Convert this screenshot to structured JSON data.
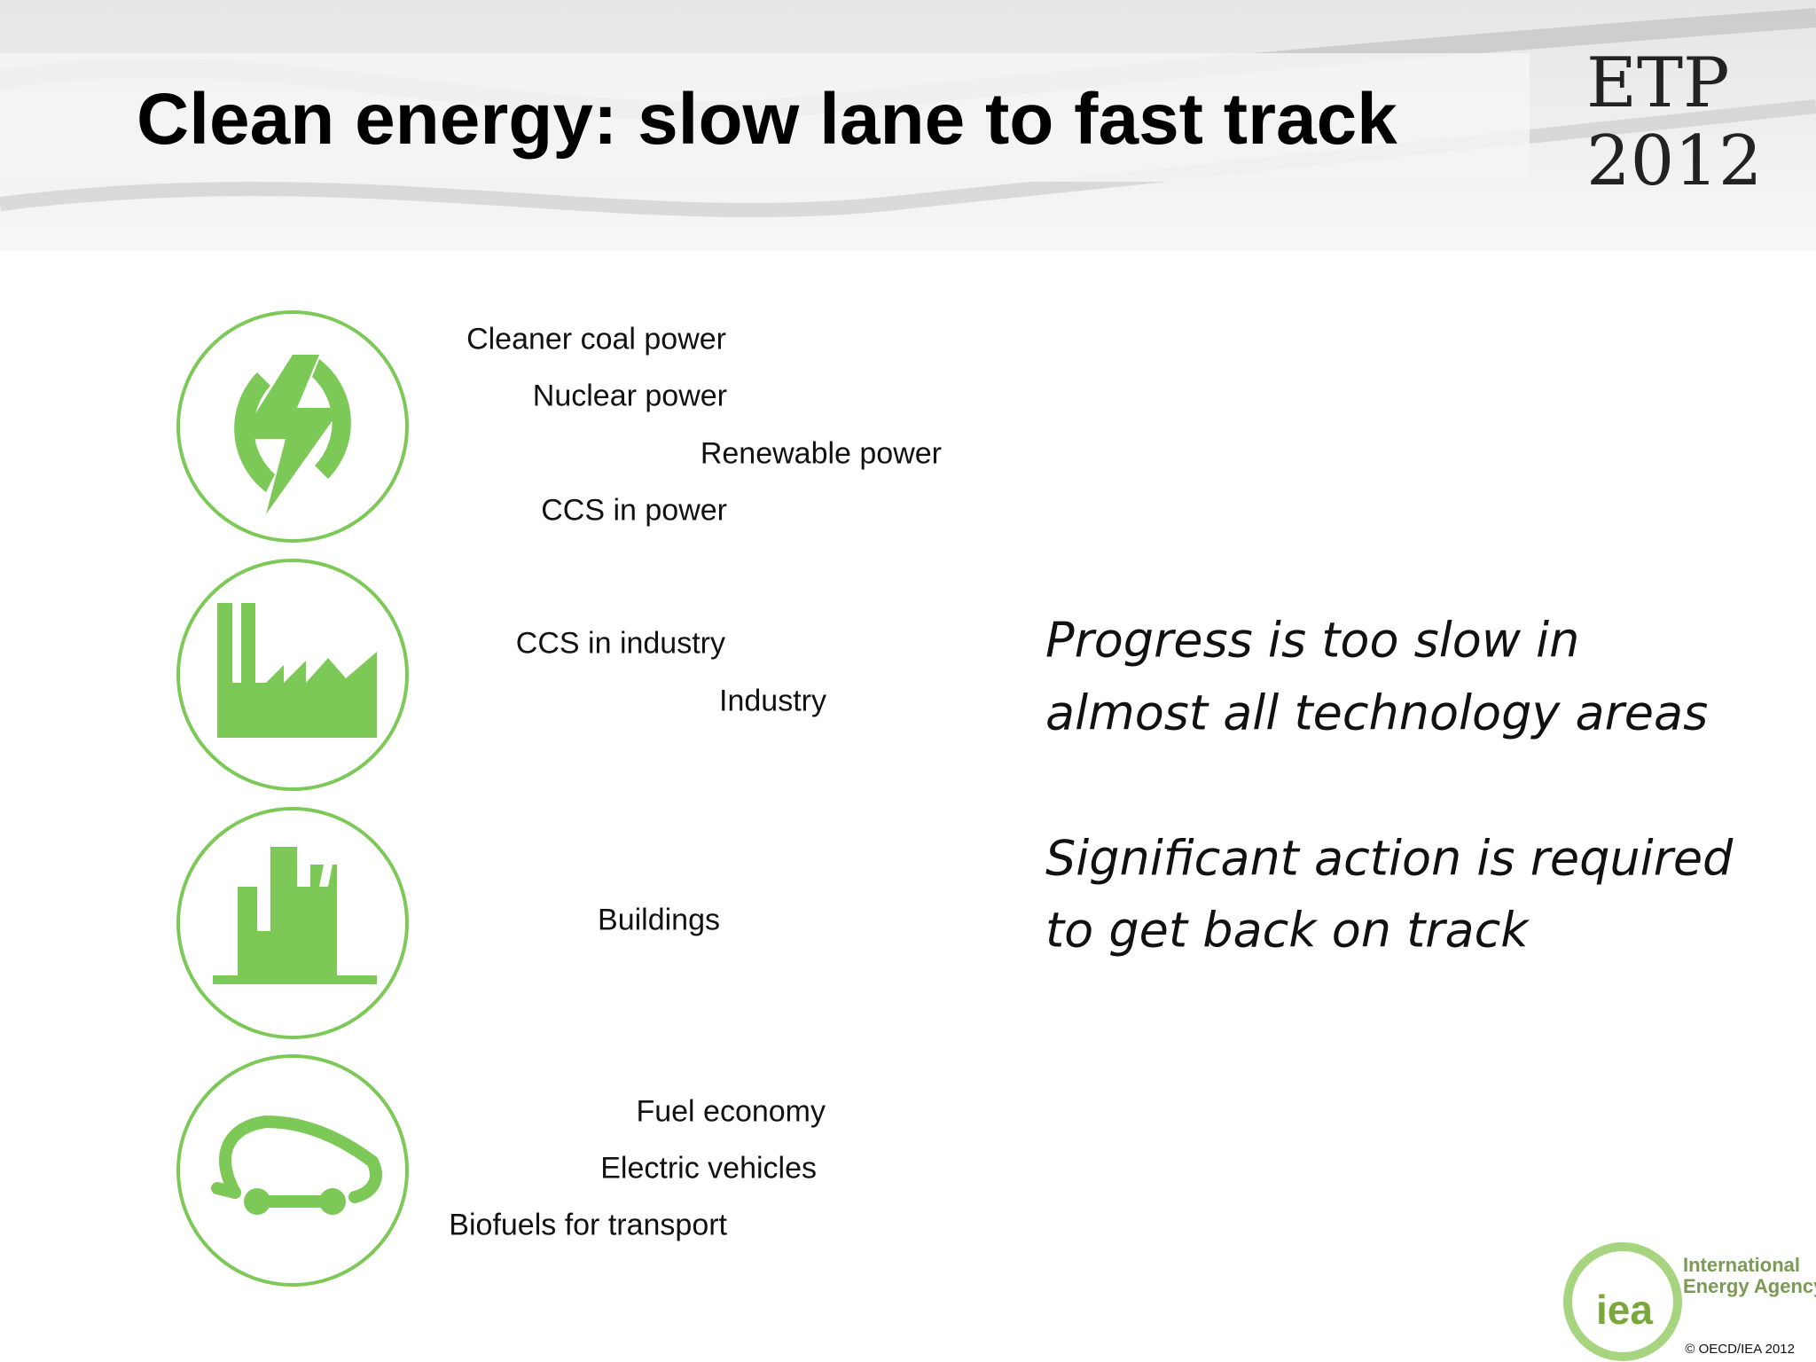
{
  "header": {
    "title": "Clean energy: slow lane to fast track",
    "badge": [
      "ETP",
      "2012"
    ]
  },
  "items": [
    "Cleaner coal power",
    "Nuclear power",
    "Renewable power",
    "CCS in power",
    "CCS in industry",
    "Industry",
    "Buildings",
    "Fuel economy",
    "Electric vehicles",
    "Biofuels for transport"
  ],
  "statements": [
    [
      "Progress is too slow in",
      "almost all technology areas"
    ],
    [
      "Significant action is required",
      "to get back on track"
    ]
  ],
  "footer": {
    "logo_mark": "iea",
    "logo_name": [
      "International",
      "Energy Agency"
    ],
    "copyright": "© OECD/IEA 2012"
  }
}
